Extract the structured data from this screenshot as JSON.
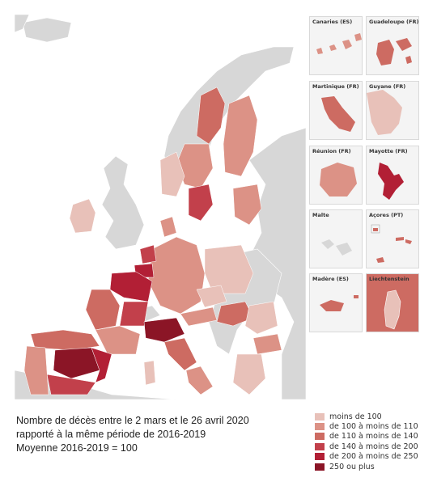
{
  "insets": [
    {
      "id": "canarias",
      "label": "Canaries (ES)",
      "color_key": "c2"
    },
    {
      "id": "guadeloupe",
      "label": "Guadeloupe (FR)",
      "color_key": "c3"
    },
    {
      "id": "martinique",
      "label": "Martinique (FR)",
      "color_key": "c3"
    },
    {
      "id": "guyane",
      "label": "Guyane (FR)",
      "color_key": "c1"
    },
    {
      "id": "reunion",
      "label": "Réunion (FR)",
      "color_key": "c2"
    },
    {
      "id": "mayotte",
      "label": "Mayotte (FR)",
      "color_key": "c5"
    },
    {
      "id": "malta",
      "label": "Malte",
      "color_key": "none"
    },
    {
      "id": "acores",
      "label": "Açores (PT)",
      "color_key": "c3"
    },
    {
      "id": "madeira",
      "label": "Madère (ES)",
      "color_key": "c3"
    },
    {
      "id": "liechtenstein",
      "label": "Liechtenstein",
      "color_key": "c3"
    }
  ],
  "caption": {
    "line1": "Nombre de décès entre le 2 mars et le 26 avril 2020",
    "line2": "rapporté à la même période de 2016-2019",
    "line3": "Moyenne 2016-2019 = 100"
  },
  "legend": [
    {
      "label": "moins de 100",
      "color": "#e8c1b9"
    },
    {
      "label": "de 100 à moins de 110",
      "color": "#dc9286"
    },
    {
      "label": "de 110 à moins de 140",
      "color": "#cd6b62"
    },
    {
      "label": "de 140 à moins de 200",
      "color": "#c2404b"
    },
    {
      "label": "de 200 à moins de 250",
      "color": "#b21f35"
    },
    {
      "label": "250 ou plus",
      "color": "#8b1526"
    }
  ],
  "colors": {
    "c0": "#e8c1b9",
    "c1": "#e8c1b9",
    "c2": "#dc9286",
    "c3": "#cd6b62",
    "c4": "#c2404b",
    "c5": "#b21f35",
    "c6": "#8b1526",
    "none": "#d7d7d7",
    "sea": "#ffffff",
    "land": "#d7d7d7"
  }
}
